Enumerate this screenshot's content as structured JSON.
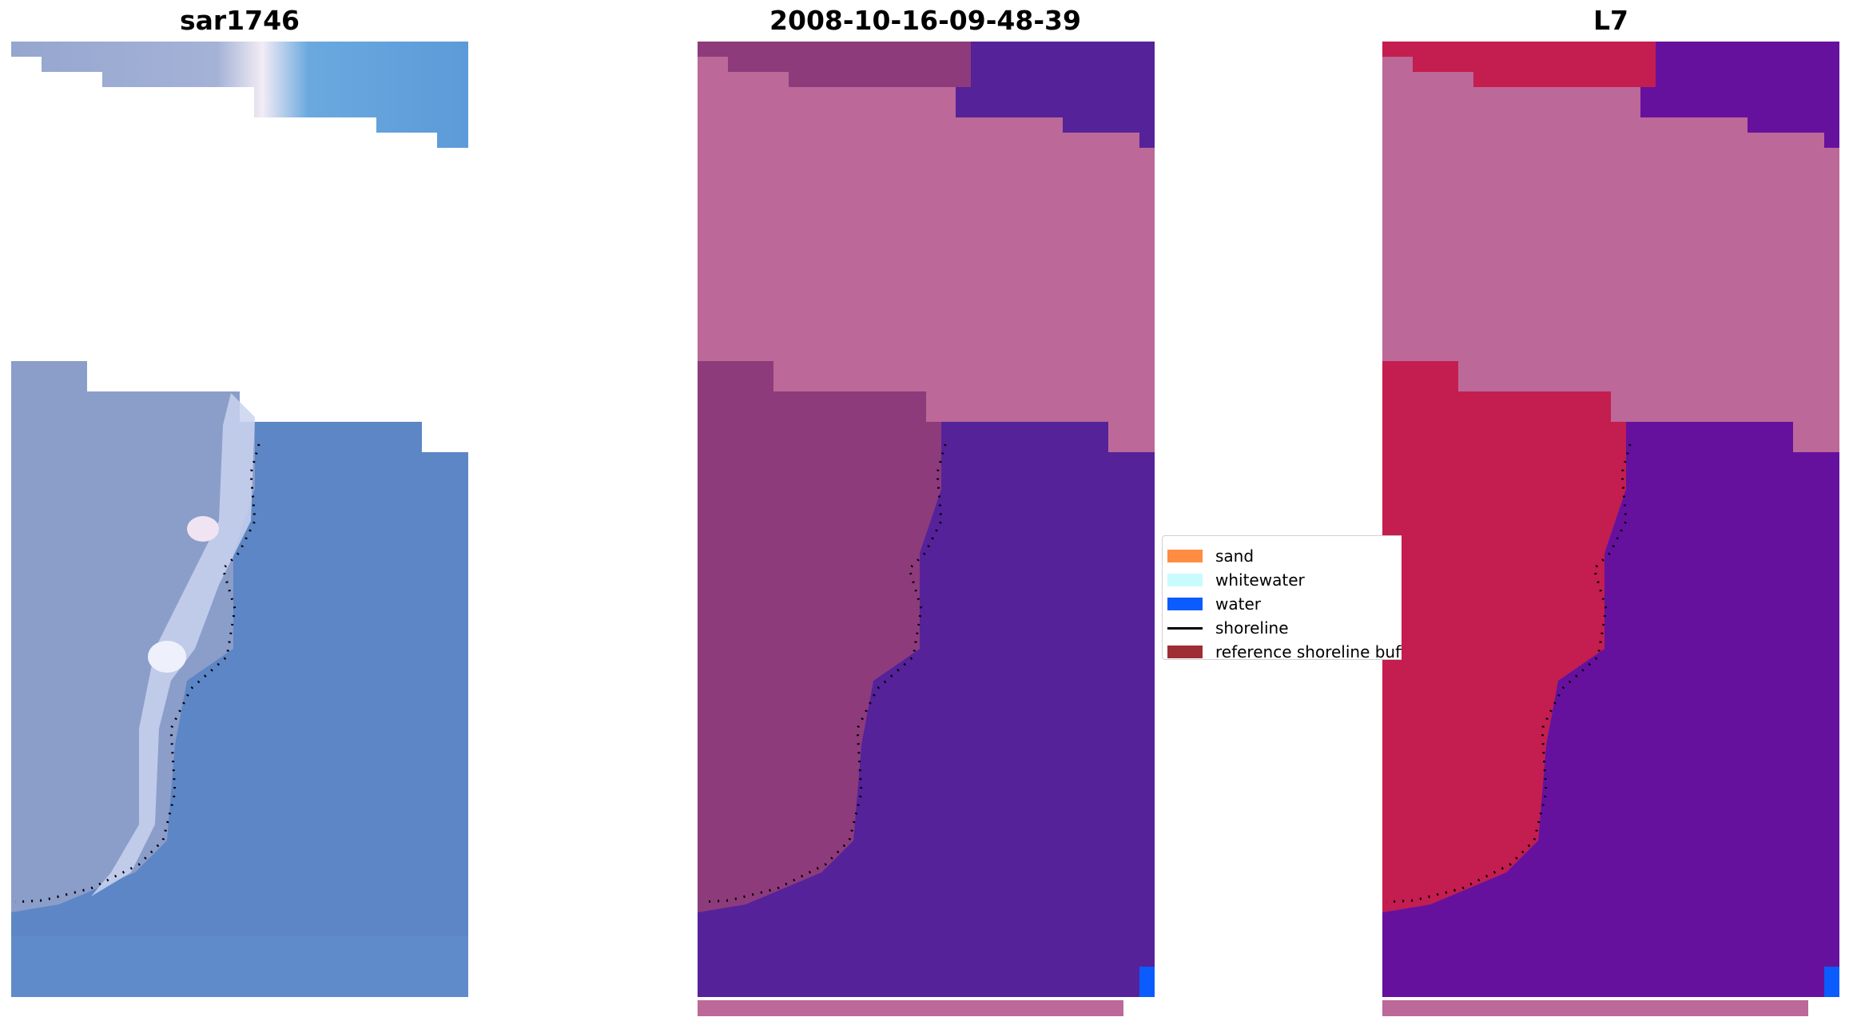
{
  "panels": [
    {
      "title": "sar1746"
    },
    {
      "title": "2008-10-16-09-48-39"
    },
    {
      "title": "L7"
    }
  ],
  "legend": {
    "items": [
      {
        "label": "sand",
        "color": "#ff8c42",
        "kind": "patch"
      },
      {
        "label": "whitewater",
        "color": "#c8fbfb",
        "kind": "patch"
      },
      {
        "label": "water",
        "color": "#0a5cff",
        "kind": "patch"
      },
      {
        "label": "shoreline",
        "color": "#000000",
        "kind": "line"
      },
      {
        "label": "reference shoreline buffer",
        "color": "#9e2e34",
        "kind": "patch"
      }
    ]
  },
  "colors": {
    "rgb_land": "#8b9dc9",
    "rgb_water": "#5d86c6",
    "rgb_whitewater": "#dfe6f6",
    "classified_land": "#bc6898",
    "classified_sand_shaded": "#8e3b7c",
    "classified_water": "#55229a",
    "mndwi_land": "#c41d4f",
    "mndwi_water": "#66119e",
    "water_pixel": "#0a5cff"
  }
}
